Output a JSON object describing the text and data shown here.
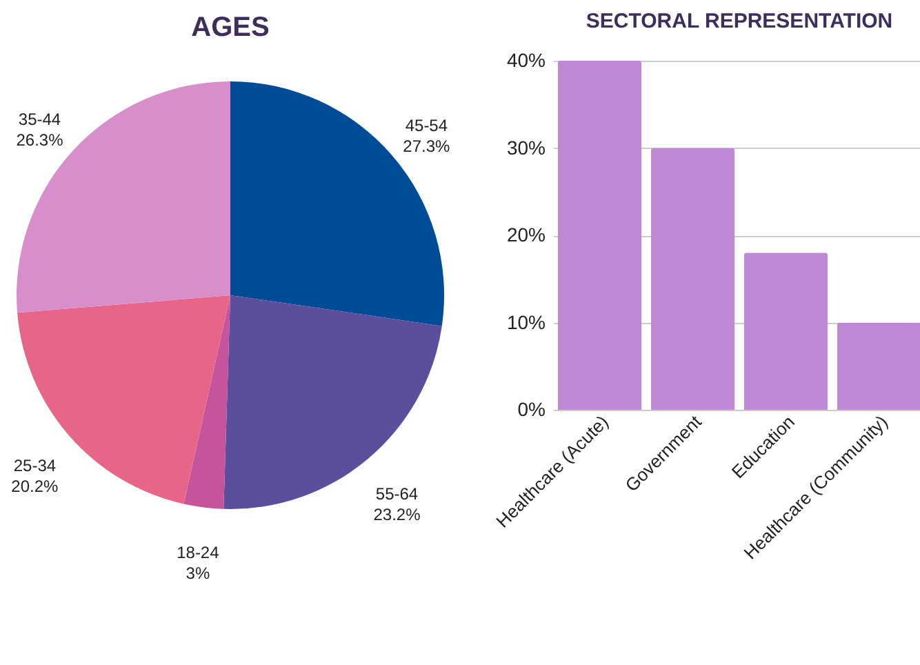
{
  "chart_data": [
    {
      "type": "pie",
      "title": "AGES",
      "categories": [
        "45-54",
        "55-64",
        "18-24",
        "25-34",
        "35-44"
      ],
      "values": [
        27.3,
        23.2,
        3,
        20.2,
        26.3
      ],
      "value_labels": [
        "27.3%",
        "23.2%",
        "3%",
        "20.2%",
        "26.3%"
      ],
      "colors": [
        "#004b96",
        "#5b4e9d",
        "#c4559c",
        "#e8658a",
        "#d98ecc"
      ]
    },
    {
      "type": "bar",
      "title": "SECTORAL REPRESENTATION",
      "categories": [
        "Healthcare (Acute)",
        "Government",
        "Education",
        "Healthcare (Community)"
      ],
      "values": [
        40,
        30,
        18,
        10
      ],
      "color": "#c087d4",
      "ylim": [
        0,
        40
      ],
      "yticks": [
        {
          "value": 0,
          "label": "0%"
        },
        {
          "value": 10,
          "label": "10%"
        },
        {
          "value": 20,
          "label": "20%"
        },
        {
          "value": 30,
          "label": "30%"
        },
        {
          "value": 40,
          "label": "40%"
        }
      ],
      "grid": "y"
    }
  ]
}
